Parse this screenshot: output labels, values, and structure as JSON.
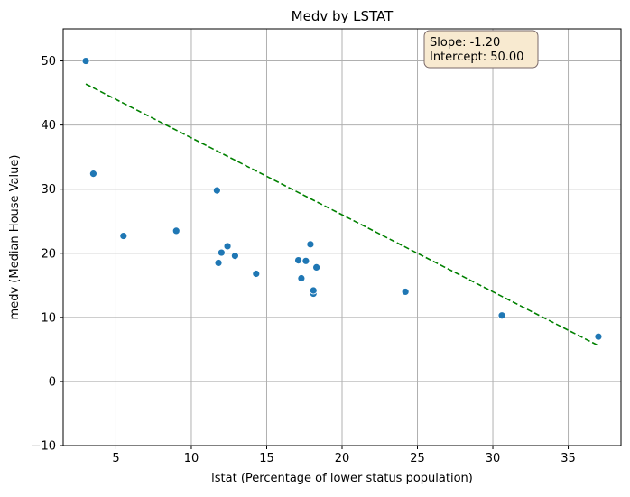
{
  "chart_data": {
    "type": "scatter",
    "title": "Medv by LSTAT",
    "xlabel": "lstat (Percentage of lower status population)",
    "ylabel": "medv (Median House Value)",
    "xlim": [
      1.5,
      38.5
    ],
    "ylim": [
      -10,
      55
    ],
    "x_ticks": [
      5,
      10,
      15,
      20,
      25,
      30,
      35
    ],
    "y_ticks": [
      -10,
      0,
      10,
      20,
      30,
      40,
      50
    ],
    "x_tick_labels": [
      "5",
      "10",
      "15",
      "20",
      "25",
      "30",
      "35"
    ],
    "y_tick_labels": [
      "−10",
      "0",
      "10",
      "20",
      "30",
      "40",
      "50"
    ],
    "grid": true,
    "points": [
      {
        "x": 3.0,
        "y": 50.0
      },
      {
        "x": 3.5,
        "y": 32.4
      },
      {
        "x": 5.5,
        "y": 22.7
      },
      {
        "x": 9.0,
        "y": 23.5
      },
      {
        "x": 11.7,
        "y": 29.8
      },
      {
        "x": 11.8,
        "y": 18.5
      },
      {
        "x": 12.0,
        "y": 20.1
      },
      {
        "x": 12.4,
        "y": 21.1
      },
      {
        "x": 12.9,
        "y": 19.6
      },
      {
        "x": 14.3,
        "y": 16.8
      },
      {
        "x": 17.1,
        "y": 18.9
      },
      {
        "x": 17.3,
        "y": 16.1
      },
      {
        "x": 17.6,
        "y": 18.8
      },
      {
        "x": 17.9,
        "y": 21.4
      },
      {
        "x": 18.1,
        "y": 13.7
      },
      {
        "x": 18.1,
        "y": 14.2
      },
      {
        "x": 18.3,
        "y": 17.8
      },
      {
        "x": 24.2,
        "y": 14.0
      },
      {
        "x": 30.6,
        "y": 10.3
      },
      {
        "x": 37.0,
        "y": 7.0
      }
    ],
    "fit_line": {
      "x_start": 3.0,
      "y_start": 46.4,
      "x_end": 37.0,
      "y_end": 5.6
    },
    "annotation": {
      "slope_text": "Slope: -1.20",
      "intercept_text": "Intercept: 50.00"
    },
    "colors": {
      "point": "#1f77b4",
      "fit_line": "#008000",
      "grid": "#b0b0b0",
      "annotation_fill": "#f8ead0",
      "annotation_stroke": "#7a6a6a"
    }
  }
}
